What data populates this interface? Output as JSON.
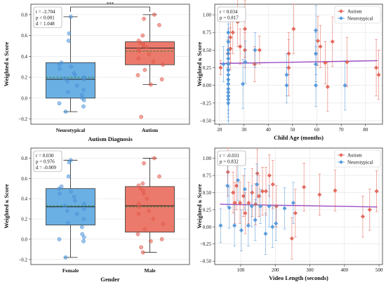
{
  "colors": {
    "autism": "#e15b4d",
    "autism_fill": "#ec7a6c",
    "neuro": "#4b93d8",
    "neuro_fill": "#6bb0e4",
    "fit_line": "#9b4fc4",
    "median": "#222222",
    "mean": "#2e7d32"
  },
  "icons": {
    "autism_marker": "red-diamond-icon",
    "neuro_marker": "blue-diamond-icon"
  },
  "chart_data": [
    {
      "type": "box",
      "xlabel": "Autism Diagnosis",
      "ylabel": "Weighted κ Score",
      "ylim": [
        -0.25,
        0.9
      ],
      "yticks": [
        -0.2,
        0.0,
        0.2,
        0.4,
        0.6,
        0.8
      ],
      "ytick_labels": [
        "−0.2",
        "0.0",
        "0.2",
        "0.4",
        "0.6",
        "0.8"
      ],
      "grid": true,
      "stats": [
        "t = -3.704",
        "p < 0.001",
        "d = 1.048"
      ],
      "significance": "***",
      "categories": [
        "Neurotypical",
        "Autism"
      ],
      "boxes": [
        {
          "q1": 0.0,
          "median": 0.18,
          "q3": 0.34,
          "whisker_low": -0.13,
          "whisker_high": 0.78,
          "mean": 0.2,
          "points": [
            0.78,
            0.62,
            0.55,
            0.34,
            0.32,
            0.3,
            0.28,
            0.24,
            0.22,
            0.2,
            0.19,
            0.18,
            0.16,
            0.12,
            0.08,
            0.06,
            0.03,
            0.0,
            -0.02,
            -0.05,
            -0.08,
            -0.13
          ]
        },
        {
          "q1": 0.32,
          "median": 0.48,
          "q3": 0.54,
          "whisker_low": 0.13,
          "whisker_high": 0.8,
          "mean": 0.45,
          "points": [
            0.8,
            0.76,
            0.7,
            0.6,
            0.55,
            0.53,
            0.52,
            0.5,
            0.49,
            0.47,
            0.45,
            0.42,
            0.38,
            0.35,
            0.32,
            0.27,
            0.22,
            0.18,
            0.13,
            -0.18
          ]
        }
      ]
    },
    {
      "type": "scatter",
      "xlabel": "Child Age (months)",
      "ylabel": "Weighted κ Score",
      "xlim": [
        18,
        87
      ],
      "ylim": [
        -0.55,
        1.15
      ],
      "xticks": [
        20,
        30,
        40,
        50,
        60,
        70,
        80
      ],
      "yticks": [
        -0.5,
        -0.25,
        0.0,
        0.25,
        0.5,
        0.75,
        1.0
      ],
      "ytick_labels": [
        "−0.50",
        "−0.25",
        "0.00",
        "0.25",
        "0.50",
        "0.75",
        "1.00"
      ],
      "grid": true,
      "legend": "top-right",
      "stats": [
        "r = 0.034",
        "p = 0.817"
      ],
      "fit": {
        "x": [
          20,
          85
        ],
        "y": [
          0.31,
          0.35
        ]
      },
      "series": [
        {
          "name": "Autism",
          "color_key": "autism",
          "points": [
            [
              20,
              0.25,
              0.1
            ],
            [
              23,
              0.45,
              0.2
            ],
            [
              24,
              0.52,
              0.3
            ],
            [
              24,
              0.68,
              0.35
            ],
            [
              25,
              0.75,
              0.3
            ],
            [
              27,
              0.9,
              0.35
            ],
            [
              28,
              0.55,
              0.25
            ],
            [
              30,
              0.8,
              0.4
            ],
            [
              30,
              0.5,
              0.25
            ],
            [
              34,
              0.3,
              0.25
            ],
            [
              36,
              0.5,
              0.2
            ],
            [
              48,
              0.25,
              0.4
            ],
            [
              48,
              0.45,
              0.3
            ],
            [
              50,
              0.8,
              0.35
            ],
            [
              60,
              0.63,
              0.35
            ],
            [
              61,
              0.55,
              0.3
            ],
            [
              63,
              0.32,
              0.3
            ],
            [
              64,
              -0.02,
              0.35
            ],
            [
              66,
              0.62,
              0.35
            ],
            [
              72,
              0.33,
              0.35
            ],
            [
              84,
              0.25,
              0.4
            ],
            [
              85,
              0.15,
              0.35
            ]
          ]
        },
        {
          "name": "Neurotypical",
          "color_key": "neuro",
          "points": [
            [
              22,
              0.3,
              0.25
            ],
            [
              24,
              0.75,
              0.3
            ],
            [
              24,
              0.62,
              0.25
            ],
            [
              24,
              0.5,
              0.3
            ],
            [
              24,
              0.45,
              0.3
            ],
            [
              24,
              0.38,
              0.3
            ],
            [
              24,
              0.3,
              0.3
            ],
            [
              24,
              0.22,
              0.3
            ],
            [
              24,
              0.15,
              0.3
            ],
            [
              24,
              0.08,
              0.25
            ],
            [
              24,
              0.02,
              0.3
            ],
            [
              24,
              -0.05,
              0.3
            ],
            [
              24,
              -0.1,
              0.3
            ],
            [
              24,
              -0.15,
              0.3
            ],
            [
              24,
              -0.2,
              0.3
            ],
            [
              24,
              -0.25,
              0.3
            ],
            [
              30,
              0.02,
              0.35
            ],
            [
              31,
              0.33,
              0.3
            ],
            [
              35,
              0.5,
              0.25
            ],
            [
              48,
              0.15,
              0.3
            ],
            [
              48,
              0.0,
              0.25
            ],
            [
              60,
              0.78,
              0.35
            ],
            [
              60,
              0.45,
              0.3
            ],
            [
              60,
              0.3,
              0.25
            ],
            [
              60,
              0.0,
              0.3
            ],
            [
              72,
              0.0,
              0.35
            ]
          ]
        }
      ]
    },
    {
      "type": "box",
      "xlabel": "Gender",
      "ylabel": "Weighted κ Score",
      "ylim": [
        -0.25,
        0.9
      ],
      "yticks": [
        -0.2,
        0.0,
        0.2,
        0.4,
        0.6,
        0.8
      ],
      "ytick_labels": [
        "−0.2",
        "0.0",
        "0.2",
        "0.4",
        "0.6",
        "0.8"
      ],
      "grid": true,
      "stats": [
        "r = 0.030",
        "p = 0.976",
        "d = -0.009"
      ],
      "categories": [
        "Female",
        "Male"
      ],
      "boxes": [
        {
          "q1": 0.14,
          "median": 0.32,
          "q3": 0.5,
          "whisker_low": -0.18,
          "whisker_high": 0.78,
          "mean": 0.33,
          "points": [
            0.78,
            0.76,
            0.62,
            0.52,
            0.5,
            0.47,
            0.45,
            0.42,
            0.38,
            0.35,
            0.33,
            0.3,
            0.28,
            0.25,
            0.2,
            0.16,
            0.12,
            0.05,
            0.02,
            0.0,
            -0.02,
            -0.18
          ]
        },
        {
          "q1": 0.07,
          "median": 0.33,
          "q3": 0.52,
          "whisker_low": -0.13,
          "whisker_high": 0.8,
          "mean": 0.32,
          "points": [
            0.8,
            0.75,
            0.62,
            0.55,
            0.53,
            0.5,
            0.48,
            0.45,
            0.4,
            0.35,
            0.32,
            0.28,
            0.25,
            0.2,
            0.15,
            0.1,
            0.05,
            0.0,
            -0.02,
            -0.08,
            -0.13
          ]
        }
      ]
    },
    {
      "type": "scatter",
      "xlabel": "Video Length (seconds)",
      "ylabel": "Weighted κ Score",
      "xlim": [
        25,
        510
      ],
      "ylim": [
        -0.55,
        1.15
      ],
      "xticks": [
        100,
        200,
        300,
        400,
        500
      ],
      "yticks": [
        -0.5,
        -0.25,
        0.0,
        0.25,
        0.5,
        0.75,
        1.0
      ],
      "ytick_labels": [
        "−0.50",
        "−0.25",
        "0.00",
        "0.25",
        "0.50",
        "0.75",
        "1.00"
      ],
      "grid": true,
      "legend": "top-right",
      "stats": [
        "r = -0.031",
        "p = 0.832"
      ],
      "fit": {
        "x": [
          40,
          495
        ],
        "y": [
          0.33,
          0.29
        ]
      },
      "series": [
        {
          "name": "Autism",
          "color_key": "autism",
          "points": [
            [
              60,
              0.8,
              0.35
            ],
            [
              75,
              0.5,
              0.3
            ],
            [
              80,
              0.35,
              0.3
            ],
            [
              85,
              0.6,
              0.35
            ],
            [
              95,
              0.35,
              0.3
            ],
            [
              105,
              0.45,
              0.3
            ],
            [
              110,
              0.2,
              0.3
            ],
            [
              120,
              0.35,
              0.3
            ],
            [
              130,
              0.5,
              0.35
            ],
            [
              140,
              0.33,
              0.3
            ],
            [
              145,
              0.78,
              0.35
            ],
            [
              150,
              0.45,
              0.3
            ],
            [
              160,
              0.52,
              0.35
            ],
            [
              170,
              0.52,
              0.35
            ],
            [
              180,
              0.75,
              0.3
            ],
            [
              190,
              0.62,
              0.35
            ],
            [
              200,
              0.3,
              0.3
            ],
            [
              245,
              -0.17,
              0.3
            ],
            [
              255,
              0.2,
              0.35
            ],
            [
              280,
              0.58,
              0.35
            ],
            [
              325,
              0.47,
              0.3
            ],
            [
              370,
              0.53,
              0.3
            ],
            [
              450,
              0.15,
              0.3
            ],
            [
              470,
              0.25,
              0.3
            ],
            [
              490,
              0.52,
              0.3
            ]
          ]
        },
        {
          "name": "Neurotypical",
          "color_key": "neuro",
          "points": [
            [
              45,
              0.02,
              0.25
            ],
            [
              65,
              0.6,
              0.3
            ],
            [
              70,
              0.28,
              0.3
            ],
            [
              85,
              0.02,
              0.3
            ],
            [
              95,
              0.68,
              0.3
            ],
            [
              105,
              -0.05,
              0.3
            ],
            [
              115,
              0.55,
              0.3
            ],
            [
              125,
              0.02,
              0.3
            ],
            [
              135,
              0.3,
              0.3
            ],
            [
              145,
              0.1,
              0.3
            ],
            [
              150,
              0.62,
              0.3
            ],
            [
              160,
              0.3,
              0.25
            ],
            [
              175,
              -0.1,
              0.3
            ],
            [
              185,
              0.3,
              0.3
            ],
            [
              195,
              0.0,
              0.3
            ],
            [
              205,
              0.05,
              0.25
            ],
            [
              230,
              0.27,
              0.3
            ],
            [
              255,
              0.35,
              0.3
            ]
          ]
        }
      ]
    }
  ]
}
